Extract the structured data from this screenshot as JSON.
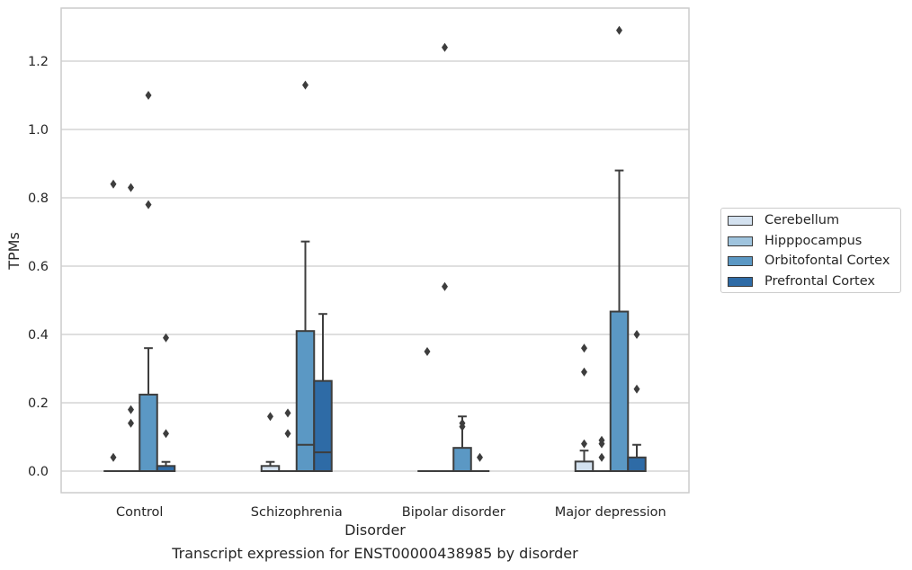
{
  "caption": "Transcript expression for ENST00000438985 by disorder",
  "chart_data": {
    "type": "box",
    "title": "",
    "xlabel": "Disorder",
    "ylabel": "TPMs",
    "ylim": [
      -0.065,
      1.36
    ],
    "yticks": [
      "0.0",
      "0.2",
      "0.4",
      "0.6",
      "0.8",
      "1.0",
      "1.2"
    ],
    "ytick_values": [
      0,
      0.2,
      0.4,
      0.6,
      0.8,
      1.0,
      1.2
    ],
    "grid": "horizontal",
    "legend_position": "right",
    "categories": [
      "Control",
      "Schizophrenia",
      "Bipolar disorder",
      "Major depression"
    ],
    "series": [
      {
        "name": "Cerebellum",
        "color": "#d3e1ef",
        "boxes": [
          {
            "q1": 0,
            "median": 0,
            "q3": 0,
            "whislo": 0,
            "whishi": 0,
            "fliers": [
              0.04,
              0.84
            ]
          },
          {
            "q1": 0,
            "median": 0,
            "q3": 0.015,
            "whislo": 0,
            "whishi": 0.027,
            "fliers": [
              0.16
            ]
          },
          {
            "q1": 0,
            "median": 0,
            "q3": 0,
            "whislo": 0,
            "whishi": 0,
            "fliers": [
              0.35
            ]
          },
          {
            "q1": 0,
            "median": 0,
            "q3": 0.028,
            "whislo": 0,
            "whishi": 0.06,
            "fliers": [
              0.08,
              0.29,
              0.36
            ]
          }
        ]
      },
      {
        "name": "Hipppocampus",
        "color": "#9fc4de",
        "boxes": [
          {
            "q1": 0,
            "median": 0,
            "q3": 0,
            "whislo": 0,
            "whishi": 0,
            "fliers": [
              0.14,
              0.18,
              0.83
            ]
          },
          {
            "q1": 0,
            "median": 0,
            "q3": 0,
            "whislo": 0,
            "whishi": 0,
            "fliers": [
              0.11,
              0.17
            ]
          },
          {
            "q1": 0,
            "median": 0,
            "q3": 0,
            "whislo": 0,
            "whishi": 0,
            "fliers": [
              0.54,
              1.24
            ]
          },
          {
            "q1": 0,
            "median": 0,
            "q3": 0,
            "whislo": 0,
            "whishi": 0,
            "fliers": [
              0.04,
              0.08,
              0.09
            ]
          }
        ]
      },
      {
        "name": "Orbitofontal Cortex",
        "color": "#5b98c4",
        "boxes": [
          {
            "q1": 0,
            "median": 0,
            "q3": 0.224,
            "whislo": 0,
            "whishi": 0.36,
            "fliers": [
              0.78,
              1.1
            ]
          },
          {
            "q1": 0,
            "median": 0.077,
            "q3": 0.41,
            "whislo": 0,
            "whishi": 0.672,
            "fliers": [
              1.13
            ]
          },
          {
            "q1": 0,
            "median": 0,
            "q3": 0.068,
            "whislo": 0,
            "whishi": 0.16,
            "fliers": [
              0.13,
              0.14
            ]
          },
          {
            "q1": 0,
            "median": 0,
            "q3": 0.467,
            "whislo": 0,
            "whishi": 0.88,
            "fliers": [
              1.29
            ]
          }
        ]
      },
      {
        "name": "Prefrontal Cortex",
        "color": "#2e6ba6",
        "boxes": [
          {
            "q1": 0,
            "median": 0,
            "q3": 0.015,
            "whislo": 0,
            "whishi": 0.027,
            "fliers": [
              0.11,
              0.39
            ]
          },
          {
            "q1": 0,
            "median": 0.055,
            "q3": 0.264,
            "whislo": 0,
            "whishi": 0.46,
            "fliers": []
          },
          {
            "q1": 0,
            "median": 0,
            "q3": 0,
            "whislo": 0,
            "whishi": 0,
            "fliers": [
              0.04
            ]
          },
          {
            "q1": 0,
            "median": 0,
            "q3": 0.04,
            "whislo": 0,
            "whishi": 0.077,
            "fliers": [
              0.24,
              0.4
            ]
          }
        ]
      }
    ]
  }
}
